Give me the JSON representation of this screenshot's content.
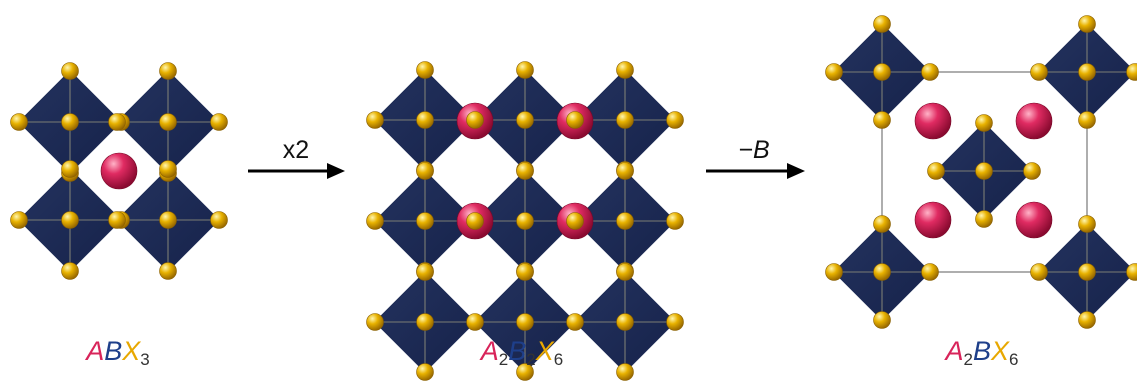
{
  "colors": {
    "octahedron": "#1d2b55",
    "octahedron_edge": "#8c8c7a",
    "x_atom": "#e3a800",
    "a_atom": "#d8245a",
    "cell_line": "#9a9a9a",
    "arrow": "#000000",
    "A": "#d8245a",
    "B": "#1e3f8a",
    "X": "#e8a800",
    "subscript": "#333333"
  },
  "panels": [
    {
      "formula": [
        {
          "letter": "A",
          "sub": ""
        },
        {
          "letter": "B",
          "sub": ""
        },
        {
          "letter": "X",
          "sub": "3"
        }
      ]
    },
    {
      "formula": [
        {
          "letter": "A",
          "sub": "2"
        },
        {
          "letter": "B",
          "sub": "2"
        },
        {
          "letter": "X",
          "sub": "6"
        }
      ]
    },
    {
      "formula": [
        {
          "letter": "A",
          "sub": "2"
        },
        {
          "letter": "B",
          "sub": ""
        },
        {
          "letter": "X",
          "sub": "6"
        }
      ]
    }
  ],
  "arrows": [
    {
      "label": "x2"
    },
    {
      "label": "−B"
    }
  ]
}
